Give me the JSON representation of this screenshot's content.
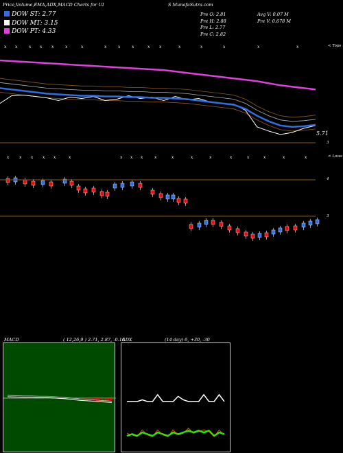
{
  "header": {
    "title_left": "Price,Volume,EMA,ADX,MACD Charts for UI",
    "title_right": "S MunafaSutra.com",
    "legend": [
      {
        "label": "DOW ST: 2.77",
        "color": "#2f6fe0"
      },
      {
        "label": "DOW MT: 3.15",
        "color": "#ffffff"
      },
      {
        "label": "DOW PT: 4.33",
        "color": "#e040e0"
      }
    ],
    "stats_col1": [
      "Pre  O: 2.81",
      "Pre  H: 2.88",
      "Pre  L: 2.77",
      "Pre  C: 2.82"
    ],
    "stats_col2": [
      "Avg V: 0.07 M",
      "Pre  V: 0.678 M"
    ]
  },
  "price_panel": {
    "top_marker": "< Tops",
    "lows_marker": "< Lows",
    "last_price_label": "5.71",
    "axis_labels": [
      "3",
      "4",
      "3"
    ]
  },
  "chart_data": [
    {
      "type": "line",
      "title": "Price,Volume,EMA,ADX,MACD Charts for UIS",
      "series": [
        {
          "name": "DOW PT",
          "color": "#e040e0",
          "values": [
            88,
            89,
            90,
            91,
            92,
            93,
            94,
            95,
            96,
            97,
            98,
            99,
            100,
            101,
            102,
            104,
            106,
            108,
            110,
            112,
            114,
            116,
            118,
            121,
            124,
            126,
            128,
            130
          ]
        },
        {
          "name": "DOW MT",
          "color": "#ffffff",
          "values": [
            150,
            139,
            138,
            140,
            142,
            146,
            141,
            143,
            140,
            146,
            144,
            139,
            143,
            141,
            146,
            140,
            145,
            143,
            148,
            150,
            151,
            160,
            184,
            190,
            195,
            192,
            186,
            182
          ]
        },
        {
          "name": "DOW ST",
          "color": "#2f6fe0",
          "values": [
            128,
            130,
            132,
            134,
            136,
            137,
            138,
            139,
            139,
            140,
            140,
            141,
            141,
            142,
            142,
            143,
            144,
            146,
            148,
            150,
            152,
            158,
            168,
            176,
            182,
            184,
            183,
            181
          ]
        }
      ]
    },
    {
      "type": "line",
      "title": "MACD",
      "params": "( 12,26,9 ) 2.71, 2.87, -0.16",
      "series": [
        {
          "name": "MACD",
          "values": [
            0.05,
            0.04,
            0.03,
            0.03,
            0.02,
            0.02,
            0.0,
            -0.02,
            -0.05,
            -0.08,
            -0.1,
            -0.12,
            -0.14,
            -0.16
          ]
        }
      ]
    },
    {
      "type": "line",
      "title": "ADX",
      "params": "(14 day) 6, +30, -30",
      "series": [
        {
          "name": "ADX",
          "color": "#ffffff",
          "values": [
            30,
            30,
            30,
            31,
            30,
            30,
            34,
            30,
            30,
            30,
            33,
            31,
            30,
            30,
            30,
            34,
            30,
            30,
            34,
            30
          ]
        },
        {
          "name": "+DI",
          "color": "#00ff00",
          "values": [
            10,
            11,
            10,
            12,
            11,
            10,
            12,
            11,
            10,
            12,
            11,
            12,
            13,
            12,
            13,
            12,
            13,
            10,
            12,
            11
          ]
        }
      ]
    }
  ],
  "macd_panel": {
    "label": "MACD",
    "params": "( 12,26,9 ) 2.71, 2.87, -0.16"
  },
  "adx_panel": {
    "label": "ADX",
    "params": "(14 day) 6, +30, -30"
  }
}
